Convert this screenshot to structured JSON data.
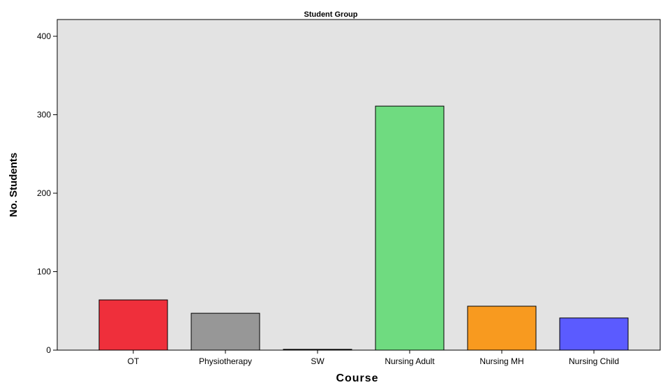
{
  "chart_data": {
    "type": "bar",
    "title": "Student Group",
    "xlabel": "Course",
    "ylabel": "No. Students",
    "categories": [
      "OT",
      "Physiotherapy",
      "SW",
      "Nursing Adult",
      "Nursing MH",
      "Nursing Child"
    ],
    "values": [
      64,
      47,
      1,
      311,
      56,
      41
    ],
    "colors": [
      "#ef2f3b",
      "#979797",
      "#000000",
      "#6fdb80",
      "#f89a1f",
      "#5b5bff"
    ],
    "ylim": [
      0,
      400
    ],
    "yticks": [
      "0",
      "100",
      "200",
      "300",
      "400"
    ],
    "grid": false,
    "legend": "none",
    "background": "#e3e3e3"
  }
}
